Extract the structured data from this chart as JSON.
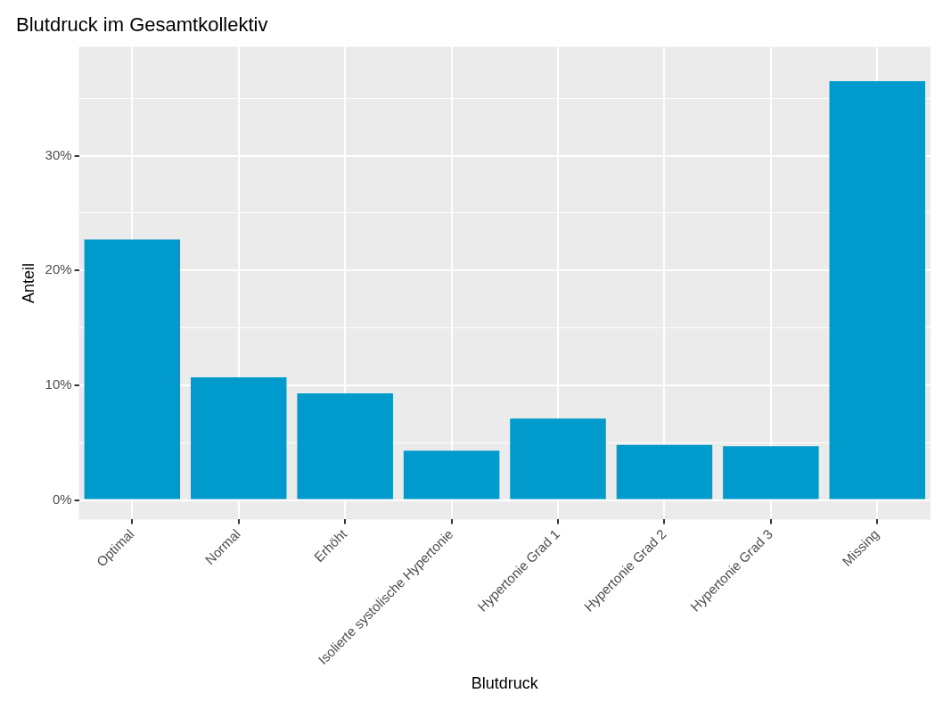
{
  "chart_data": {
    "type": "bar",
    "title": "Blutdruck im Gesamtkollektiv",
    "xlabel": "Blutdruck",
    "ylabel": "Anteil",
    "categories": [
      "Optimal",
      "Normal",
      "Erhöht",
      "Isolierte systolische Hypertonie",
      "Hypertonie Grad 1",
      "Hypertonie Grad 2",
      "Hypertonie Grad 3",
      "Missing"
    ],
    "values": [
      22.7,
      10.7,
      9.3,
      4.3,
      7.1,
      4.8,
      4.7,
      36.5
    ],
    "color": "#009acd",
    "ylim": [
      -1.7,
      39.5
    ],
    "yticks": [
      {
        "value": 0,
        "label": "0%"
      },
      {
        "value": 5,
        "label": null
      },
      {
        "value": 10,
        "label": "10%"
      },
      {
        "value": 15,
        "label": null
      },
      {
        "value": 20,
        "label": "20%"
      },
      {
        "value": 25,
        "label": null
      },
      {
        "value": 30,
        "label": "30%"
      },
      {
        "value": 35,
        "label": null
      }
    ],
    "grid": true,
    "legend": false
  }
}
